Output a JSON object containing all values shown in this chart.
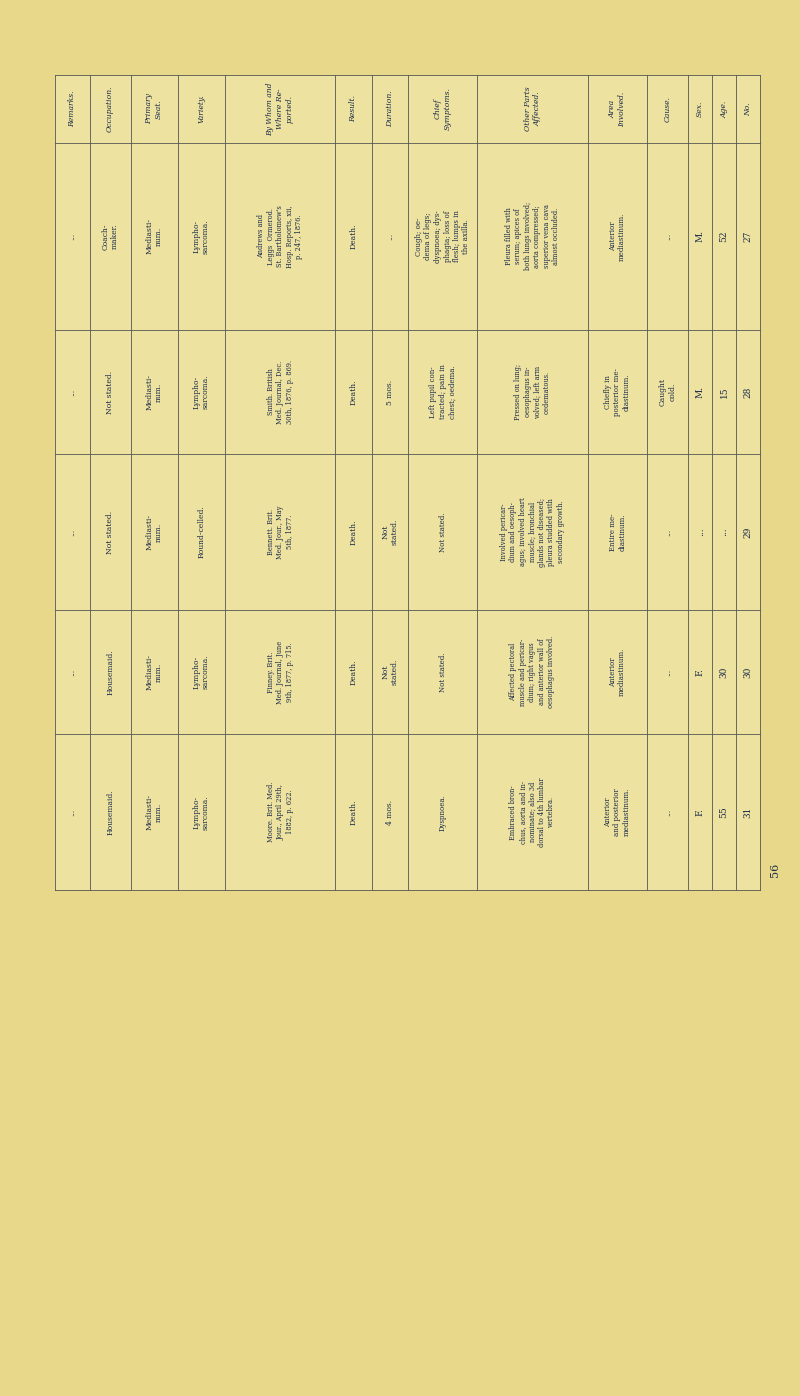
{
  "bg_color": "#e8d98a",
  "line_color": "#555555",
  "text_color": "#1a2a4a",
  "page_number": "56",
  "col_keys": [
    "remarks",
    "occupation",
    "primary_seat",
    "variety",
    "by_whom",
    "result",
    "duration",
    "symptoms",
    "other_parts",
    "area",
    "cause",
    "sex",
    "age",
    "no"
  ],
  "col_headers": [
    "Remarks.",
    "Occupation.",
    "Primary\nSeat.",
    "Variety.",
    "By Whom and\nWhere Re-\nported.",
    "Result.",
    "Duration.",
    "Chief\nSymptoms.",
    "Other Parts\nAffected.",
    "Area\nInvolved.",
    "Cause.",
    "Sex.",
    "Age.",
    "No."
  ],
  "col_weights": [
    0.055,
    0.065,
    0.075,
    0.075,
    0.175,
    0.058,
    0.058,
    0.11,
    0.175,
    0.095,
    0.065,
    0.038,
    0.038,
    0.038
  ],
  "row_weights": [
    0.24,
    0.16,
    0.2,
    0.16,
    0.2
  ],
  "rows": [
    {
      "no": "27",
      "age": "52",
      "sex": "M.",
      "cause": "...",
      "area": "Anterior\nmediastinum.",
      "other_parts": "Pleura filled with\nserum; apices of\nboth lungs involved;\naorta compressed;\nsuperior vena cava\nalmost occluded.",
      "symptoms": "Cough; oe-\ndema of legs;\ndyspnoea; dys-\nphagia; loss of\nflesh; lumps in\nthe axilla.",
      "duration": "...",
      "result": "Death.",
      "by_whom": "Andrews and\nLeggs  Ormerod.\nSt. Bartholomew's\nHosp. Reports, xii,\np. 247, 1876.",
      "variety": "Lympho-\nsarcoma.",
      "primary_seat": "Mediasti-\nnum.",
      "occupation": "Coach-\nmaker.",
      "remarks": "..."
    },
    {
      "no": "28",
      "age": "15",
      "sex": "M.",
      "cause": "Caught\ncold.",
      "area": "Chiefly in\nposterior me-\ndiastinum.",
      "other_parts": "Pressed on lung;\noesophagus in-\nvolved; left arm\noedematous.",
      "symptoms": "Left pupil con-\ntracted; pain in\nchest; oedema.",
      "duration": "5 mos.",
      "result": "Death.",
      "by_whom": "Smith. British\nMed. Journal, Dec.\n30th, 1876, p. 869.",
      "variety": "Lympho-\nsarcoma.",
      "primary_seat": "Mediasti-\nnum.",
      "occupation": "Not stated.",
      "remarks": "..."
    },
    {
      "no": "29",
      "age": "...",
      "sex": "...",
      "cause": "...",
      "area": "Entire me-\ndiastinum.",
      "other_parts": "Involved pericar-\ndium and oesoph-\nagus; involved heart\nmuscle; bronchial\nglands not diseased;\npleura studded with\nsecondary growth.",
      "symptoms": "Not stated.",
      "duration": "Not\nstated.",
      "result": "Death.",
      "by_whom": "Bennett. Brit.\nMed. Jour., May\n5th, 1877.",
      "variety": "Round-celled.",
      "primary_seat": "Mediasti-\nnum.",
      "occupation": "Not stated.",
      "remarks": "..."
    },
    {
      "no": "30",
      "age": "30",
      "sex": "F.",
      "cause": "...",
      "area": "Anterior\nmediastinum.",
      "other_parts": "Affected pectoral\nmuscle and pericar-\ndium; right vagus\nand anterior wall of\noesophagus involved.",
      "symptoms": "Not stated.",
      "duration": "Not\nstated.",
      "result": "Death.",
      "by_whom": "Finney. Brit.\nMed. Journal, June\n9th, 1877, p. 715.",
      "variety": "Lympho-\nsarcoma.",
      "primary_seat": "Mediasti-\nnum.",
      "occupation": "Housemaid.",
      "remarks": "..."
    },
    {
      "no": "31",
      "age": "55",
      "sex": "F.",
      "cause": "...",
      "area": "Anterior\nand posterior\nmediastinum.",
      "other_parts": "Embraced bron-\nchus, aorta and in-\nnominate; also 3d\ndorsal to 4th lumbar\nvertebra.",
      "symptoms": "Dyspnoea.",
      "duration": "4 mos.",
      "result": "Death.",
      "by_whom": "Moore. Brit. Med.\nJour., April 29th,\n1882, p. 622.",
      "variety": "Lympho-\nsarcoma.",
      "primary_seat": "Mediasti-\nnum.",
      "occupation": "Housemaid.",
      "remarks": "..."
    }
  ]
}
